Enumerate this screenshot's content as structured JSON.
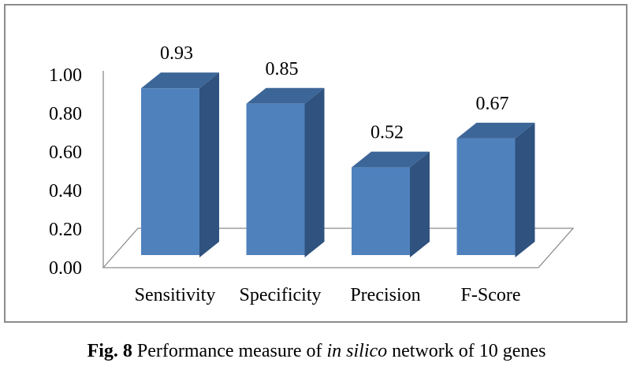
{
  "chart_data": {
    "type": "bar",
    "categories": [
      "Sensitivity",
      "Specificity",
      "Precision",
      "F-Score"
    ],
    "values": [
      0.93,
      0.85,
      0.52,
      0.67
    ],
    "data_labels": [
      "0.93",
      "0.85",
      "0.52",
      "0.67"
    ],
    "yticks": [
      "0.00",
      "0.20",
      "0.40",
      "0.60",
      "0.80",
      "1.00"
    ],
    "ylim": [
      0,
      1.0
    ],
    "grid": false,
    "legend": "none",
    "style": "3d-column",
    "colors": {
      "front": "#4f81bd",
      "side": "#2f527e",
      "top": "#3d6698"
    }
  },
  "caption": {
    "label": "Fig. 8",
    "text_before": " Performance measure of ",
    "text_italic": "in silico",
    "text_after": " network of 10 genes"
  }
}
